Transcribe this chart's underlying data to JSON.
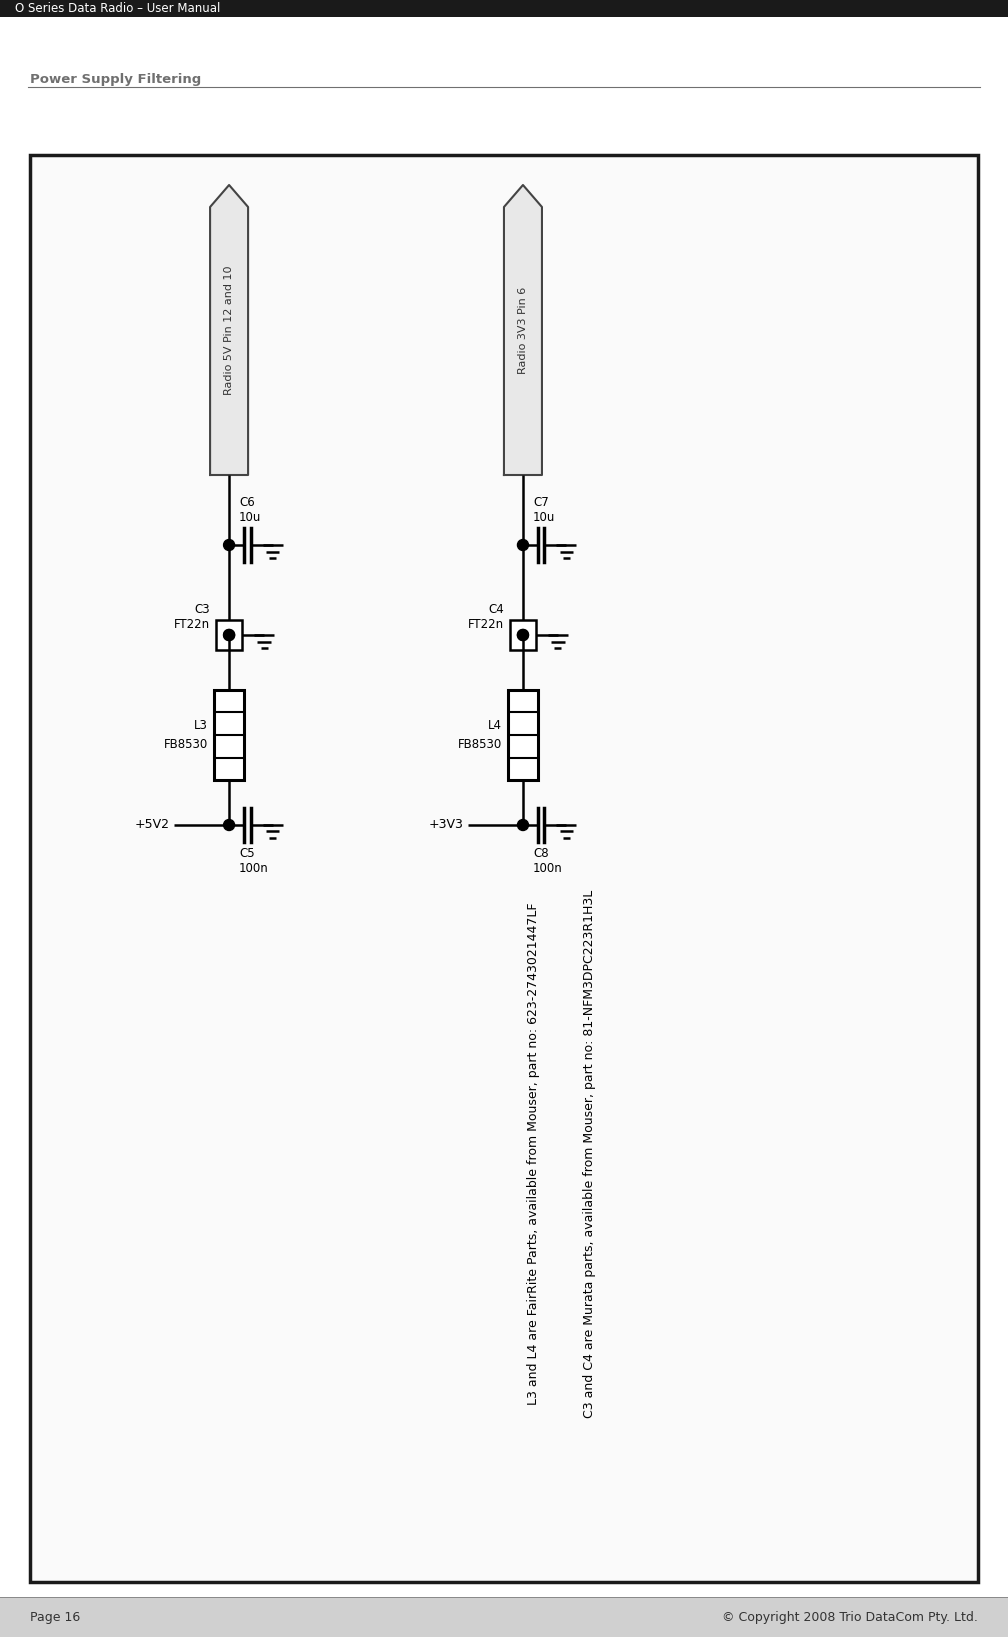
{
  "page_title": "O Series Data Radio – User Manual",
  "section_title": "Power Supply Filtering",
  "footer_left": "Page 16",
  "footer_right": "© Copyright 2008 Trio DataCom Pty. Ltd.",
  "note_line1": "L3 and L4 are FairRite Parts, available from Mouser, part no: 623-2743021447LF",
  "note_line2": "C3 and C4 are Murata parts, available from Mouser, part no: 81-NFM3DPC223R1H3L",
  "bg_color": "#ffffff",
  "box_bg": "#fafafa",
  "box_border": "#1a1a1a",
  "header_bar_color": "#1a1a1a",
  "title_color": "#707070",
  "section_line_color": "#707070",
  "diagram": {
    "left_circuit": {
      "label_top": "Radio 5V Pin 12 and 10",
      "label_left": "+5V2",
      "inductor_label1": "L3",
      "inductor_label2": "FB8530",
      "cap_ft_label1": "C3",
      "cap_ft_label2": "FT22n",
      "cap_top_label1": "C6",
      "cap_top_label2": "10u",
      "cap_bot_label1": "C5",
      "cap_bot_label2": "100n"
    },
    "right_circuit": {
      "label_top": "Radio 3V3 Pin 6",
      "label_left": "+3V3",
      "inductor_label1": "L4",
      "inductor_label2": "FB8530",
      "cap_ft_label1": "C4",
      "cap_ft_label2": "FT22n",
      "cap_top_label1": "C7",
      "cap_top_label2": "10u",
      "cap_bot_label1": "C8",
      "cap_bot_label2": "100n"
    }
  },
  "fig_width": 10.08,
  "fig_height": 16.37,
  "dpi": 100
}
